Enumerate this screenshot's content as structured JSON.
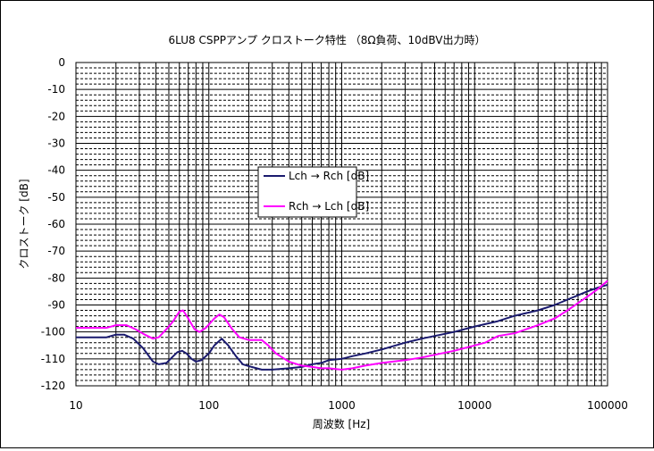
{
  "chart_data": {
    "type": "line",
    "title": "6LU8 CSPPアンプ クロストーク特性 （8Ω負荷、10dBV出力時）",
    "xlabel": "周波数 [Hz]",
    "ylabel": "クロストーク [dB]",
    "x_scale": "log",
    "xlim": [
      10,
      100000
    ],
    "ylim": [
      -120,
      0
    ],
    "grid": true,
    "legend_position": "center",
    "x_ticks": [
      {
        "value": 10,
        "label": "10"
      },
      {
        "value": 100,
        "label": "100"
      },
      {
        "value": 1000,
        "label": "1000"
      },
      {
        "value": 10000,
        "label": "10000"
      },
      {
        "value": 100000,
        "label": "100000"
      }
    ],
    "y_ticks": [
      {
        "value": 0,
        "label": "0"
      },
      {
        "value": -10,
        "label": "-10"
      },
      {
        "value": -20,
        "label": "-20"
      },
      {
        "value": -30,
        "label": "-30"
      },
      {
        "value": -40,
        "label": "-40"
      },
      {
        "value": -50,
        "label": "-50"
      },
      {
        "value": -60,
        "label": "-60"
      },
      {
        "value": -70,
        "label": "-70"
      },
      {
        "value": -80,
        "label": "-80"
      },
      {
        "value": -90,
        "label": "-90"
      },
      {
        "value": -100,
        "label": "-100"
      },
      {
        "value": -110,
        "label": "-110"
      },
      {
        "value": -120,
        "label": "-120"
      }
    ],
    "series": [
      {
        "name": "Lch → Rch [dB]",
        "color": "#1a1a6e",
        "points": [
          [
            10,
            -102
          ],
          [
            14,
            -102
          ],
          [
            17,
            -102
          ],
          [
            20,
            -101
          ],
          [
            23,
            -101
          ],
          [
            27,
            -102.5
          ],
          [
            32,
            -106
          ],
          [
            38,
            -111
          ],
          [
            42,
            -112
          ],
          [
            48,
            -111.5
          ],
          [
            54,
            -109
          ],
          [
            58,
            -107.5
          ],
          [
            63,
            -107
          ],
          [
            68,
            -108
          ],
          [
            74,
            -110
          ],
          [
            80,
            -111
          ],
          [
            88,
            -110.5
          ],
          [
            100,
            -108
          ],
          [
            110,
            -105
          ],
          [
            125,
            -102.5
          ],
          [
            140,
            -105
          ],
          [
            160,
            -109
          ],
          [
            180,
            -112
          ],
          [
            210,
            -113
          ],
          [
            250,
            -114
          ],
          [
            300,
            -114
          ],
          [
            400,
            -113.5
          ],
          [
            500,
            -113
          ],
          [
            600,
            -112
          ],
          [
            700,
            -111.5
          ],
          [
            800,
            -110.5
          ],
          [
            1000,
            -110
          ],
          [
            1200,
            -109
          ],
          [
            1500,
            -108
          ],
          [
            2000,
            -106.5
          ],
          [
            3000,
            -104
          ],
          [
            4000,
            -102.5
          ],
          [
            5000,
            -101.5
          ],
          [
            7000,
            -100
          ],
          [
            10000,
            -98
          ],
          [
            15000,
            -96
          ],
          [
            20000,
            -94
          ],
          [
            30000,
            -92
          ],
          [
            40000,
            -90
          ],
          [
            50000,
            -88
          ],
          [
            70000,
            -85
          ],
          [
            85000,
            -83.5
          ],
          [
            100000,
            -82.5
          ]
        ]
      },
      {
        "name": "Rch → Lch [dB]",
        "color": "#ff00ff",
        "points": [
          [
            10,
            -98.5
          ],
          [
            14,
            -98.5
          ],
          [
            17,
            -98.5
          ],
          [
            20,
            -97.5
          ],
          [
            24,
            -97.5
          ],
          [
            28,
            -99
          ],
          [
            33,
            -101
          ],
          [
            38,
            -102.5
          ],
          [
            42,
            -102
          ],
          [
            48,
            -99
          ],
          [
            54,
            -96
          ],
          [
            60,
            -92.5
          ],
          [
            64,
            -92
          ],
          [
            70,
            -95
          ],
          [
            78,
            -99
          ],
          [
            85,
            -100
          ],
          [
            95,
            -98.5
          ],
          [
            110,
            -95
          ],
          [
            120,
            -93.5
          ],
          [
            130,
            -94.5
          ],
          [
            150,
            -99
          ],
          [
            170,
            -102
          ],
          [
            200,
            -103
          ],
          [
            250,
            -103
          ],
          [
            280,
            -105
          ],
          [
            320,
            -108
          ],
          [
            400,
            -111
          ],
          [
            500,
            -112.5
          ],
          [
            600,
            -113
          ],
          [
            700,
            -113.5
          ],
          [
            800,
            -113.5
          ],
          [
            1000,
            -114
          ],
          [
            1200,
            -113.5
          ],
          [
            1500,
            -112.5
          ],
          [
            2000,
            -111.5
          ],
          [
            3000,
            -110.5
          ],
          [
            4000,
            -109.5
          ],
          [
            5000,
            -108.5
          ],
          [
            7000,
            -107
          ],
          [
            10000,
            -105
          ],
          [
            12000,
            -104
          ],
          [
            15000,
            -101.5
          ],
          [
            20000,
            -100.5
          ],
          [
            30000,
            -97.5
          ],
          [
            40000,
            -95
          ],
          [
            50000,
            -92
          ],
          [
            70000,
            -87
          ],
          [
            85000,
            -84
          ],
          [
            100000,
            -81
          ]
        ]
      }
    ]
  }
}
